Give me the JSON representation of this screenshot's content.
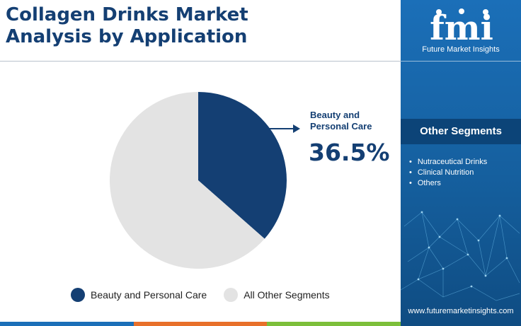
{
  "header": {
    "title_line1": "Collagen Drinks Market",
    "title_line2": "Analysis by Application"
  },
  "chart_data": {
    "type": "pie",
    "title": "Collagen Drinks Market Analysis by Application",
    "labels": [
      "Beauty and Personal Care",
      "All Other Segments"
    ],
    "values": [
      36.5,
      63.5
    ],
    "colors": [
      "#143f73",
      "#e3e3e3"
    ],
    "legend_placement": "bottom",
    "annotation": {
      "label_line1": "Beauty and",
      "label_line2": "Personal Care",
      "value_text": "36.5%"
    }
  },
  "legend": {
    "items": [
      {
        "label": "Beauty and Personal Care",
        "color": "#143f73"
      },
      {
        "label": "All Other Segments",
        "color": "#e3e3e3"
      }
    ]
  },
  "sidebar": {
    "logo_text": "fmi",
    "logo_subtitle": "Future Market Insights",
    "segments_heading": "Other Segments",
    "segments": [
      "Nutraceutical Drinks",
      "Clinical Nutrition",
      "Others"
    ],
    "website": "www.futuremarketinsights.com"
  },
  "colors": {
    "primary": "#143f73",
    "secondary": "#e3e3e3",
    "sidebar": "#1b6fb8",
    "bottom_bar": [
      "#1b6fb8",
      "#e8702a",
      "#7cbf3a"
    ]
  },
  "icons": {
    "callout_arrow": "arrow-right-icon",
    "background_art": "network-lines"
  }
}
